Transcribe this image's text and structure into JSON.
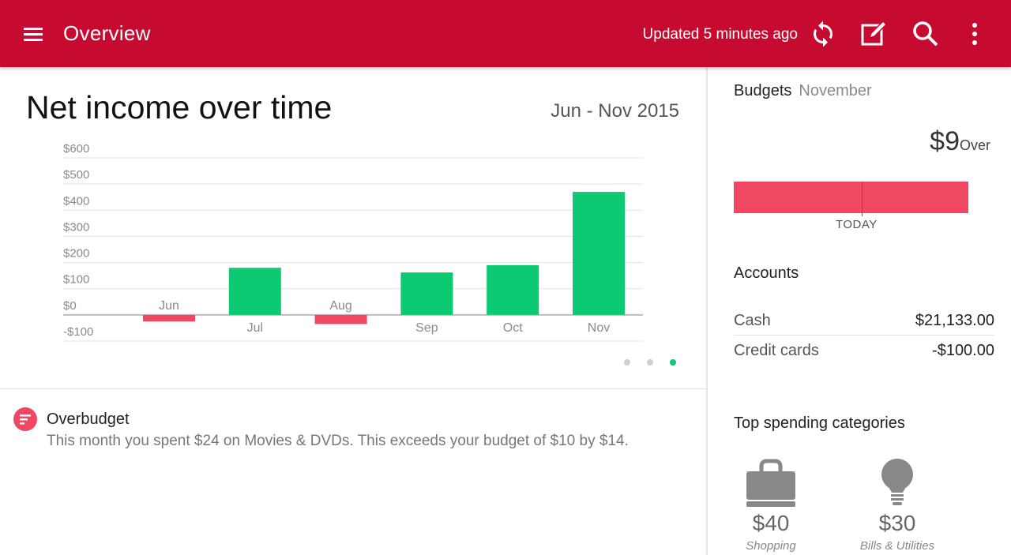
{
  "app_bar": {
    "title": "Overview",
    "updated_text": "Updated 5 minutes ago",
    "icons": [
      "menu-icon",
      "refresh-icon",
      "edit-icon",
      "search-icon",
      "more-vert-icon"
    ],
    "background": "#c70b30"
  },
  "net_income": {
    "title": "Net income over time",
    "date_range": "Jun - Nov 2015",
    "pager": {
      "pages": 3,
      "active": 3
    }
  },
  "chart_data": {
    "type": "bar",
    "categories": [
      "Jun",
      "Jul",
      "Aug",
      "Sep",
      "Oct",
      "Nov"
    ],
    "values": [
      -25,
      180,
      -35,
      162,
      190,
      470
    ],
    "ylim": [
      -100,
      600
    ],
    "ytick_labels": [
      "$600",
      "$500",
      "$400",
      "$300",
      "$200",
      "$100",
      "$0",
      "-$100"
    ],
    "yticks": [
      600,
      500,
      400,
      300,
      200,
      100,
      0,
      -100
    ],
    "grid": true,
    "positive_color": "#0cc972",
    "negative_color": "#f04863"
  },
  "alert": {
    "title": "Overbudget",
    "body": "This month you spent $24 on Movies & DVDs. This exceeds your budget of $10 by $14.",
    "icon": "list-icon"
  },
  "budgets": {
    "title": "Budgets",
    "month": "November",
    "amount": "$9",
    "status": "Over",
    "today_label": "TODAY",
    "bar_color": "#f04863"
  },
  "accounts": {
    "title": "Accounts",
    "items": [
      {
        "name": "Cash",
        "value": "$21,133.00"
      },
      {
        "name": "Credit cards",
        "value": "-$100.00"
      }
    ]
  },
  "top_spending": {
    "title": "Top spending categories",
    "items": [
      {
        "amount": "$40",
        "label": "Shopping",
        "icon": "shopping-bag-icon"
      },
      {
        "amount": "$30",
        "label": "Bills & Utilities",
        "icon": "lightbulb-icon"
      }
    ]
  }
}
